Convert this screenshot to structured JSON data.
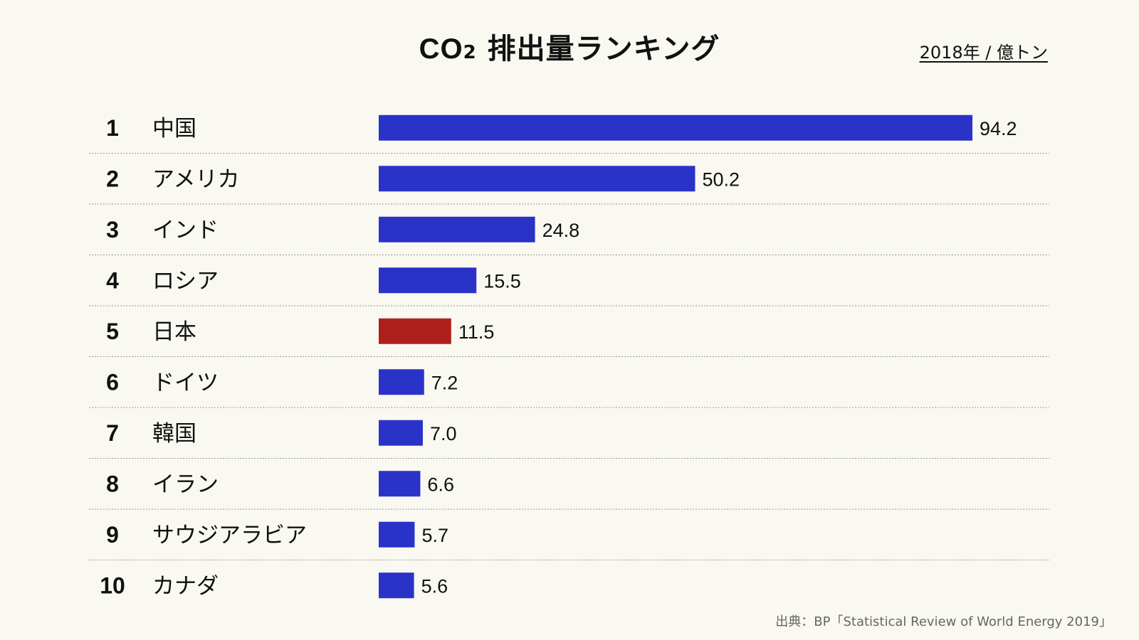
{
  "header": {
    "title_prefix": "CO",
    "title_sub": "2",
    "title_suffix": " 排出量ランキング",
    "unit": "2018年 / 億トン"
  },
  "source": "出典：BP「Statistical  Review of World Energy 2019」",
  "colors": {
    "bar": "#2a33c8",
    "highlight": "#ae1f1b",
    "background": "#f9f8f1"
  },
  "chart_data": {
    "type": "bar",
    "orientation": "horizontal",
    "title": "CO2 排出量ランキング",
    "unit": "2018年 / 億トン",
    "ranks": [
      "1",
      "2",
      "3",
      "4",
      "5",
      "6",
      "7",
      "8",
      "9",
      "10"
    ],
    "categories": [
      "中国",
      "アメリカ",
      "インド",
      "ロシア",
      "日本",
      "ドイツ",
      "韓国",
      "イラン",
      "サウジアラビア",
      "カナダ"
    ],
    "values": [
      94.2,
      50.2,
      24.8,
      15.5,
      11.5,
      7.2,
      7.0,
      6.6,
      5.7,
      5.6
    ],
    "value_labels": [
      "94.2",
      "50.2",
      "24.8",
      "15.5",
      "11.5",
      "7.2",
      "7.0",
      "6.6",
      "5.7",
      "5.6"
    ],
    "highlight": "日本",
    "xlim": [
      0,
      94.2
    ]
  }
}
